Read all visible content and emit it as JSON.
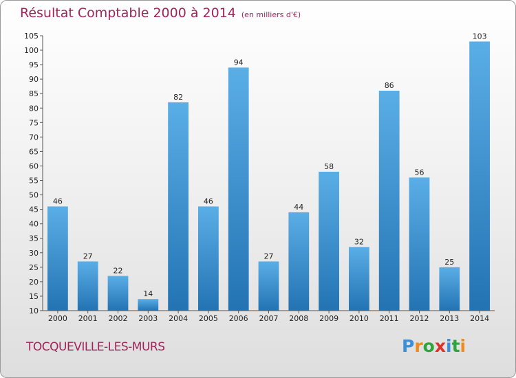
{
  "title": "Résultat Comptable 2000 à 2014",
  "subtitle": "(en milliers d'€)",
  "commune": "TOCQUEVILLE-LES-MURS",
  "logo": {
    "letters": [
      "P",
      "r",
      "o",
      "x",
      "i",
      "t",
      "i"
    ],
    "colors": [
      "#3b8fd8",
      "#f08a1c",
      "#2ea43c",
      "#e0302a",
      "#3b8fd8",
      "#2ea43c",
      "#f08a1c"
    ]
  },
  "colors": {
    "title": "#a0245a",
    "bar_top": "#5aaee6",
    "bar_bottom": "#2373b3"
  },
  "chart_data": {
    "type": "bar",
    "title": "Résultat Comptable 2000 à 2014",
    "subtitle": "(en milliers d'€)",
    "xlabel": "",
    "ylabel": "",
    "categories": [
      "2000",
      "2001",
      "2002",
      "2003",
      "2004",
      "2005",
      "2006",
      "2007",
      "2008",
      "2009",
      "2010",
      "2011",
      "2012",
      "2013",
      "2014"
    ],
    "values": [
      46,
      27,
      22,
      14,
      82,
      46,
      94,
      27,
      44,
      58,
      32,
      86,
      56,
      25,
      103
    ],
    "ylim": [
      10,
      105
    ],
    "yticks": [
      10,
      15,
      20,
      25,
      30,
      35,
      40,
      45,
      50,
      55,
      60,
      65,
      70,
      75,
      80,
      85,
      90,
      95,
      100,
      105
    ],
    "grid": false,
    "legend": "none"
  }
}
